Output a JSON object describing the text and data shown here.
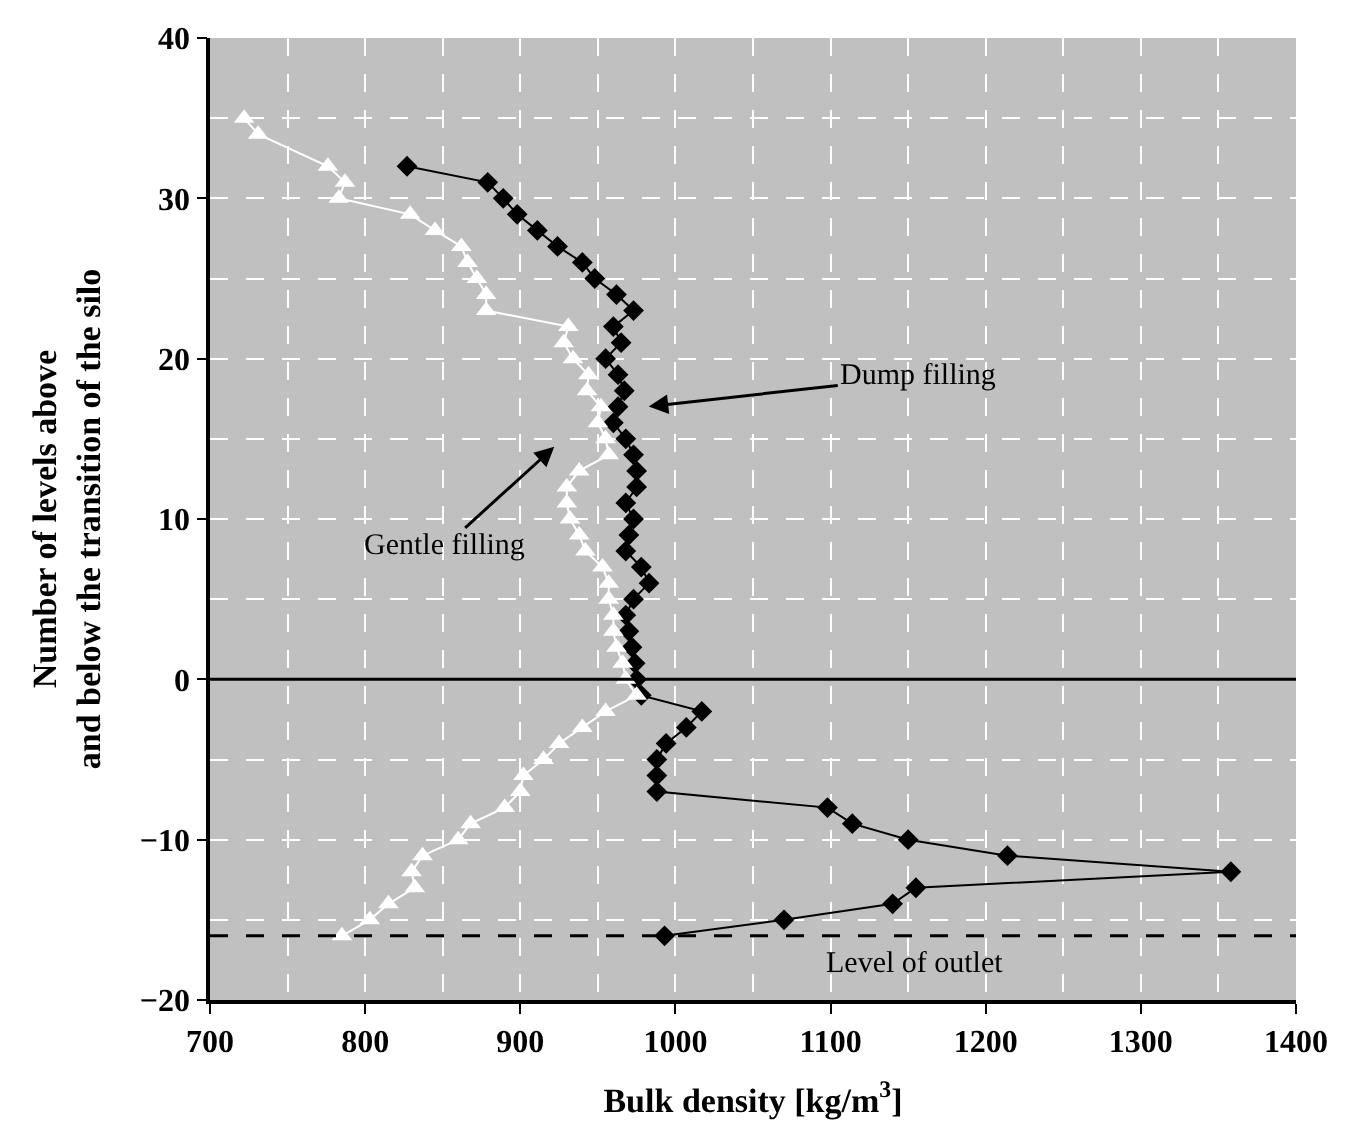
{
  "chart_data": {
    "type": "line",
    "xlabel": "Bulk density [kg/m$^{3}$]",
    "ylabel": "Number of levels above\nand below the transition of the silo",
    "series": [
      {
        "color": "#000000",
        "marker": "diamond",
        "x": [
          827,
          879,
          889,
          898,
          911,
          924,
          940,
          948,
          962,
          973,
          960,
          965,
          955,
          963,
          967,
          963,
          960,
          968,
          973,
          975,
          975,
          968,
          973,
          970,
          968,
          978,
          983,
          973,
          968,
          970,
          972,
          974,
          975,
          978,
          1017,
          1007,
          994,
          988,
          988,
          988,
          1098,
          1114,
          1150,
          1214,
          1358,
          1155,
          1140,
          1070,
          993
        ],
        "values": [
          32,
          31,
          30,
          29,
          28,
          27,
          26,
          25,
          24,
          23,
          22,
          21,
          20,
          19,
          18,
          17,
          16,
          15,
          14,
          13,
          12,
          11,
          10,
          9,
          8,
          7,
          6,
          5,
          4,
          3,
          2,
          1,
          0,
          -1,
          -2,
          -3,
          -4,
          -5,
          -6,
          -7,
          -8,
          -9,
          -10,
          -11,
          -12,
          -13,
          -14,
          -15,
          -16
        ]
      },
      {
        "color": "#ffffff",
        "marker": "triangle",
        "x": [
          722,
          731,
          776,
          787,
          783,
          829,
          845,
          862,
          866,
          872,
          878,
          878,
          931,
          928,
          934,
          944,
          943,
          952,
          950,
          955,
          957,
          938,
          930,
          930,
          932,
          938,
          942,
          953,
          957,
          957,
          960,
          960,
          962,
          966,
          968,
          975,
          955,
          940,
          925,
          915,
          902,
          900,
          890,
          868,
          860,
          837,
          830,
          832,
          815,
          803,
          785
        ],
        "values": [
          35,
          34,
          32,
          31,
          30,
          29,
          28,
          27,
          26,
          25,
          24,
          23,
          22,
          21,
          20,
          19,
          18,
          17,
          16,
          15,
          14,
          13,
          12,
          11,
          10,
          9,
          8,
          7,
          6,
          5,
          4,
          3,
          2,
          1,
          0,
          -1,
          -2,
          -3,
          -4,
          -5,
          -6,
          -7,
          -8,
          -9,
          -10,
          -11,
          -12,
          -13,
          -14,
          -15,
          -16
        ]
      }
    ],
    "xlim": [
      700,
      1400
    ],
    "xticks": [
      700,
      800,
      900,
      1000,
      1100,
      1200,
      1300,
      1400
    ],
    "ylim": [
      -20,
      40
    ],
    "yticks": [
      -20,
      -10,
      0,
      10,
      20,
      30,
      40
    ],
    "grid": true,
    "ref_lines": [
      {
        "axis": "y",
        "value": 0,
        "line_style": "solid",
        "color": "#000000"
      },
      {
        "axis": "y",
        "value": -16,
        "line_style": "dashed",
        "color": "#000000",
        "label": "Level of outlet"
      }
    ],
    "annotations": [
      "Dump filling",
      "Gentle filling"
    ]
  }
}
